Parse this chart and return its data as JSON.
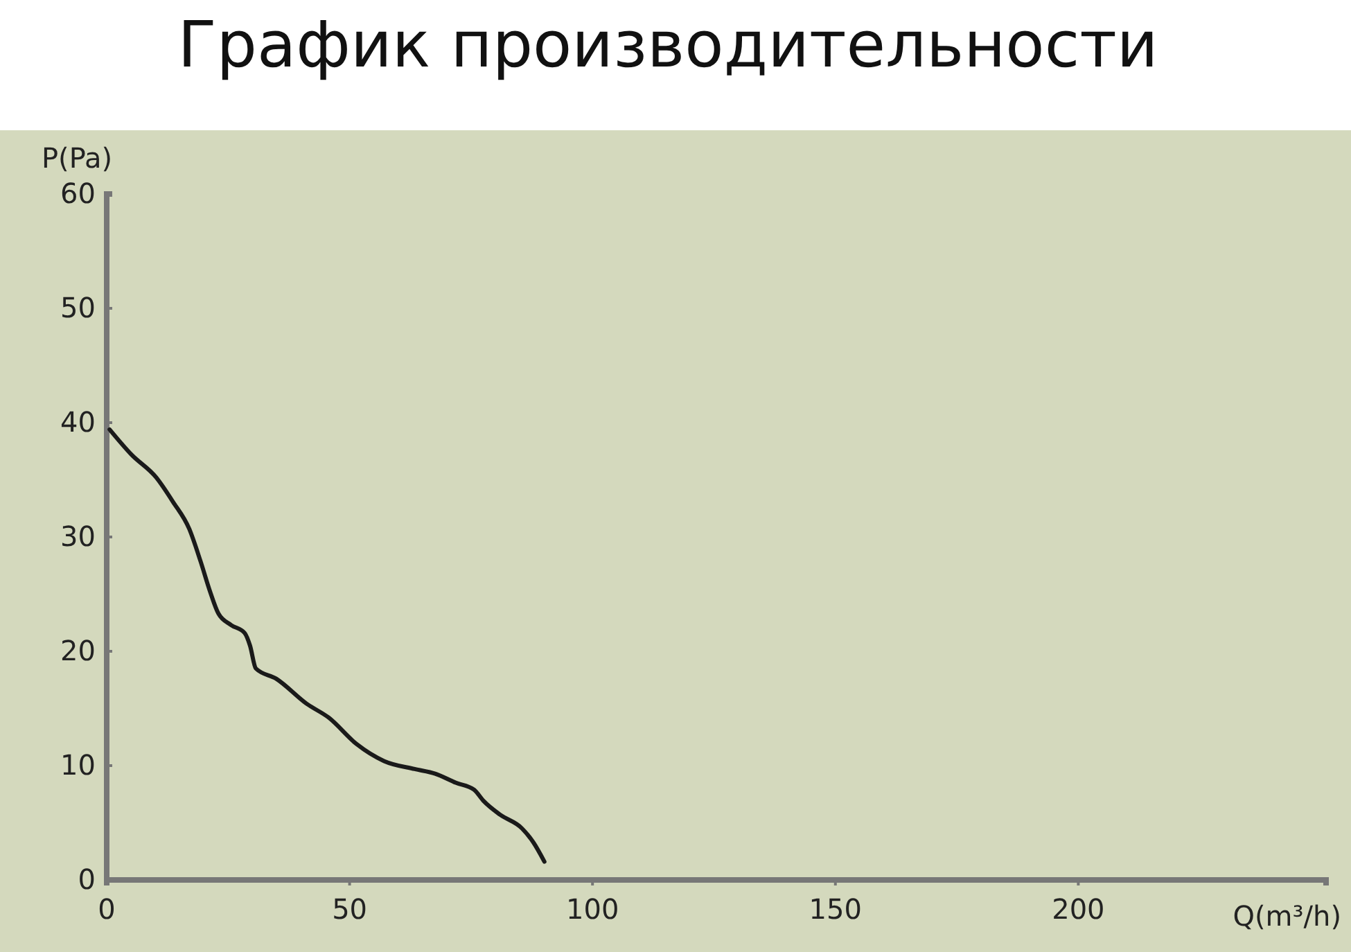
{
  "chart_data": {
    "type": "line",
    "title": "График производительности",
    "xlabel": "Q(m³/h)",
    "ylabel": "P(Pa)",
    "xlim": [
      0,
      251
    ],
    "ylim": [
      0,
      60
    ],
    "xticks": [
      0,
      50,
      100,
      150,
      200
    ],
    "yticks": [
      0,
      10,
      20,
      30,
      40,
      50,
      60
    ],
    "grid": false,
    "marker": "none",
    "line_style": "solid",
    "series": [
      {
        "color": "#1a1a1a",
        "x": [
          0.6,
          5.1,
          10.2,
          13.6,
          17.0,
          19.3,
          21.3,
          23.0,
          25.6,
          28.4,
          29.5,
          30.7,
          34.9,
          41.2,
          45.7,
          51.4,
          57.1,
          63.4,
          67.6,
          71.9,
          75.6,
          77.6,
          81.0,
          85.5,
          87.8,
          90.1
        ],
        "values": [
          39.4,
          37.2,
          35.2,
          33.1,
          30.7,
          27.9,
          25.2,
          23.3,
          22.3,
          21.6,
          20.5,
          18.5,
          17.6,
          15.4,
          14.2,
          11.9,
          10.4,
          9.7,
          9.3,
          8.5,
          7.9,
          6.9,
          5.7,
          4.5,
          3.3,
          1.6
        ]
      }
    ]
  }
}
